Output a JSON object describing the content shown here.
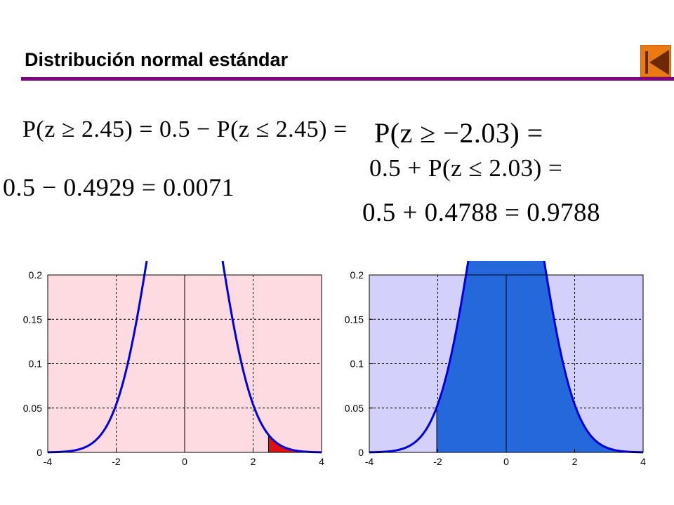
{
  "slide": {
    "title": "Distribución normal estándar",
    "accent_color": "#800080",
    "nav_button": {
      "icon": "back-to-start-icon",
      "color": "#ea7a13"
    }
  },
  "formulas": {
    "left_line1": "P(z ≥ 2.45) = 0.5 − P(z ≤ 2.45) =",
    "left_line2": "0.5 − 0.4929 = 0.0071",
    "right_line1": "P(z ≥ −2.03) =",
    "right_line2": "0.5 + P(z ≤ 2.03) =",
    "right_line3": "0.5 + 0.4788 = 0.9788"
  },
  "chart_data": [
    {
      "type": "area",
      "curve": "standard normal pdf",
      "xlim": [
        -4,
        4
      ],
      "ylim": [
        0,
        0.2
      ],
      "xticks": [
        -4,
        -2,
        0,
        2,
        4
      ],
      "xtick_labels": [
        "-4",
        "-2",
        "0",
        "2",
        "4"
      ],
      "yticks": [
        0,
        0.05,
        0.1,
        0.15,
        0.2
      ],
      "ytick_labels": [
        "0",
        "0.05",
        "0.1",
        "0.15",
        "0.2"
      ],
      "grid": true,
      "shade_from": 2.45,
      "shade_to": 4,
      "background_color": "#fddbe0",
      "shade_color": "#dd1111",
      "line_color": "#0000dd",
      "title": "",
      "xlabel": "",
      "ylabel": ""
    },
    {
      "type": "area",
      "curve": "standard normal pdf",
      "xlim": [
        -4,
        4
      ],
      "ylim": [
        0,
        0.2
      ],
      "xticks": [
        -4,
        -2,
        0,
        2,
        4
      ],
      "xtick_labels": [
        "-4",
        "-2",
        "0",
        "2",
        "4"
      ],
      "yticks": [
        0,
        0.05,
        0.1,
        0.15,
        0.2
      ],
      "ytick_labels": [
        "0",
        "0.05",
        "0.1",
        "0.15",
        "0.2"
      ],
      "grid": true,
      "shade_from": -2.03,
      "shade_to": 4,
      "background_color": "#d4d0fc",
      "shade_color": "#2468dc",
      "line_color": "#0000dd",
      "title": "",
      "xlabel": "",
      "ylabel": ""
    }
  ]
}
